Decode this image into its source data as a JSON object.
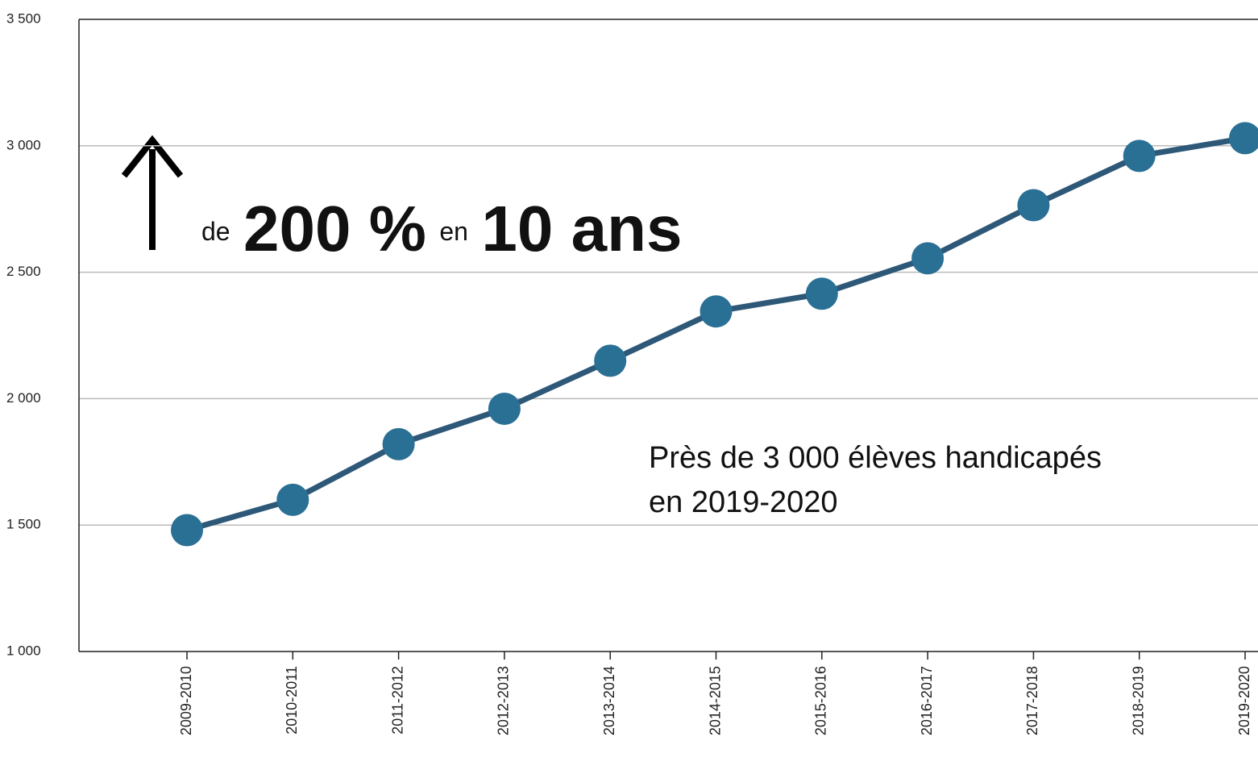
{
  "chart_data": {
    "type": "line",
    "categories": [
      "2009-2010",
      "2010-2011",
      "2011-2012",
      "2012-2013",
      "2013-2014",
      "2014-2015",
      "2015-2016",
      "2016-2017",
      "2017-2018",
      "2018-2019",
      "2019-2020"
    ],
    "values": [
      1480,
      1600,
      1820,
      1960,
      2150,
      2345,
      2415,
      2555,
      2765,
      2960,
      3030
    ],
    "color": "#2d5878",
    "marker_color": "#2a6f94",
    "ylim": [
      1000,
      3500
    ],
    "yticks": [
      {
        "value": 1000,
        "label": "1 000"
      },
      {
        "value": 1500,
        "label": "1 500"
      },
      {
        "value": 2000,
        "label": "2 000"
      },
      {
        "value": 2500,
        "label": "2 500"
      },
      {
        "value": 3000,
        "label": "3 000"
      },
      {
        "value": 3500,
        "label": "3 500"
      }
    ],
    "grid": true,
    "annotations": {
      "headline": [
        "de",
        "200 %",
        "en",
        "10 ans"
      ],
      "note": [
        "Près de 3 000 élèves handicapés",
        "en 2019-2020"
      ]
    }
  }
}
